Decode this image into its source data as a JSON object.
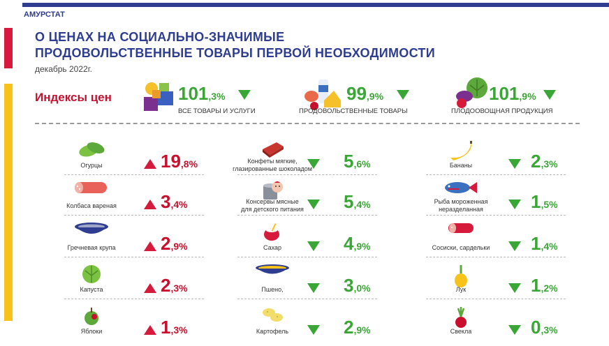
{
  "header": {
    "org": "АМУРСТАТ",
    "title_line1": "О ЦЕНАХ НА СОЦИАЛЬНО-ЗНАЧИМЫЕ",
    "title_line2": "ПРОДОВОЛЬСТВЕННЫЕ ТОВАРЫ ПЕРВОЙ НЕОБХОДИМОСТИ",
    "date": "декабрь 2022г.",
    "section": "Индексы цен"
  },
  "indices": [
    {
      "int": "101",
      "dec": ",3%",
      "label": "ВСЕ ТОВАРЫ И УСЛУГИ",
      "icon": "goods-cubes-icon"
    },
    {
      "int": "99",
      "dec": ",9%",
      "label": "ПРОДОВОЛЬСТВЕННЫЕ ТОВАРЫ",
      "icon": "food-products-icon"
    },
    {
      "int": "101",
      "dec": ",9%",
      "label": "ПЛОДООВОЩНАЯ ПРОДУКЦИЯ",
      "icon": "vegetables-icon"
    }
  ],
  "columns": [
    [
      {
        "name": "Огурцы",
        "int": "19",
        "dec": ",8%",
        "dir": "up",
        "icon": "cucumber-icon"
      },
      {
        "name": "Колбаса вареная",
        "int": "3",
        "dec": ",4%",
        "dir": "up",
        "icon": "sausage-icon"
      },
      {
        "name": "Гречневая крупа",
        "int": "2",
        "dec": ",9%",
        "dir": "up",
        "icon": "buckwheat-bowl-icon"
      },
      {
        "name": "Капуста",
        "int": "2",
        "dec": ",3%",
        "dir": "up",
        "icon": "cabbage-icon"
      },
      {
        "name": "Яблоки",
        "int": "1",
        "dec": ",3%",
        "dir": "up",
        "icon": "apple-icon"
      }
    ],
    [
      {
        "name": "Конфеты мягкие,\nглазированные шоколадом",
        "int": "5",
        "dec": ",6%",
        "dir": "down",
        "icon": "candy-icon"
      },
      {
        "name": "Консервы мясные\nдля детского питания",
        "int": "5",
        "dec": ",4%",
        "dir": "down",
        "icon": "baby-food-can-icon"
      },
      {
        "name": "Сахар",
        "int": "4",
        "dec": ",9%",
        "dir": "down",
        "icon": "sugar-bowl-icon"
      },
      {
        "name": "Пшено,",
        "int": "3",
        "dec": ",0%",
        "dir": "down",
        "icon": "millet-bowl-icon"
      },
      {
        "name": "Картофель",
        "int": "2",
        "dec": ",9%",
        "dir": "down",
        "icon": "potato-icon"
      }
    ],
    [
      {
        "name": "Бананы",
        "int": "2",
        "dec": ",3%",
        "dir": "down",
        "icon": "banana-icon"
      },
      {
        "name": "Рыба мороженная\nнеразделанная",
        "int": "1",
        "dec": ",5%",
        "dir": "down",
        "icon": "fish-icon"
      },
      {
        "name": "Сосиски, сардельки",
        "int": "1",
        "dec": ",4%",
        "dir": "down",
        "icon": "frankfurter-icon"
      },
      {
        "name": "Лук",
        "int": "1",
        "dec": ",2%",
        "dir": "down",
        "icon": "onion-icon"
      },
      {
        "name": "Свекла",
        "int": "0",
        "dec": ",3%",
        "dir": "down",
        "icon": "beet-icon"
      }
    ]
  ],
  "colors": {
    "brand": "#2e3d8f",
    "up": "#d61a3c",
    "down": "#3aa635",
    "accent": "#f7c21a"
  }
}
